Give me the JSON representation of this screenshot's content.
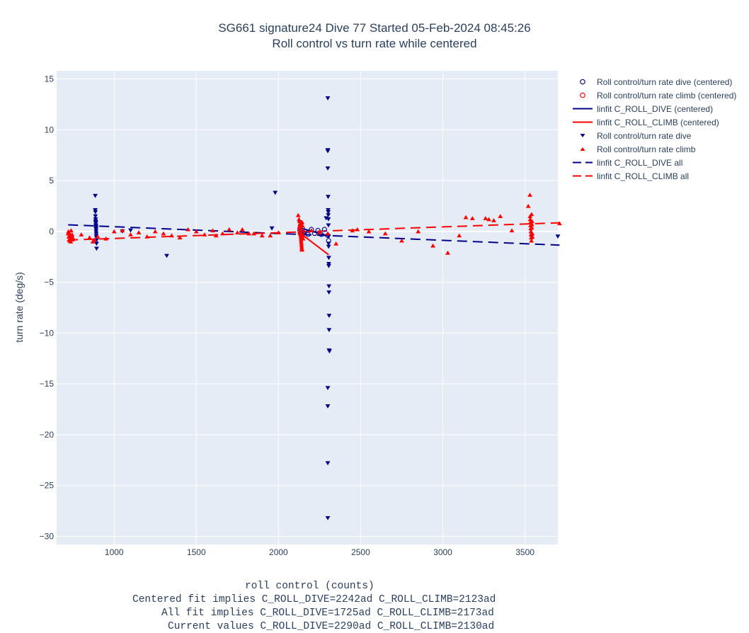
{
  "chart_data": {
    "type": "scatter",
    "title": "SG661 signature24 Dive 77 Started 05-Feb-2024 08:45:26",
    "subtitle": "Roll control vs turn rate while centered",
    "xlabel": "roll control (counts)",
    "xlabel_lines": [
      "Centered fit implies C_ROLL_DIVE=2242ad C_ROLL_CLIMB=2123ad",
      "All fit implies C_ROLL_DIVE=1725ad C_ROLL_CLIMB=2173ad",
      "Current values C_ROLL_DIVE=2290ad C_ROLL_CLIMB=2130ad"
    ],
    "ylabel": "turn rate (deg/s)",
    "xlim": [
      650,
      3700
    ],
    "ylim": [
      -30.8,
      15.8
    ],
    "xticks": [
      1000,
      1500,
      2000,
      2500,
      3000,
      3500
    ],
    "yticks": [
      15,
      10,
      5,
      0,
      -5,
      -10,
      -15,
      -20,
      -25,
      -30
    ],
    "grid": true,
    "legend_position": "right",
    "colors": {
      "dive": "#00008b",
      "climb": "#ff0000",
      "plot_bg": "#e5ecf6",
      "grid": "#ffffff",
      "text": "#2a3f5f"
    },
    "series": [
      {
        "name": "Roll control/turn rate dive (centered)",
        "kind": "open-circle",
        "color": "#00008b",
        "x": [
          2130,
          2135,
          2145,
          2150,
          2160,
          2180,
          2200,
          2220,
          2240,
          2260,
          2280,
          2300,
          2305
        ],
        "y": [
          0.1,
          -0.2,
          0.3,
          -0.1,
          0.0,
          -0.3,
          0.2,
          -0.2,
          0.1,
          -0.3,
          0.2,
          -0.4,
          -0.9
        ]
      },
      {
        "name": "Roll control/turn rate climb (centered)",
        "kind": "open-circle",
        "color": "#ff0000",
        "x": [
          2130,
          2132,
          2136,
          2140,
          2142,
          2146
        ],
        "y": [
          0.3,
          -0.2,
          0.5,
          -0.5,
          0.1,
          -0.1
        ]
      },
      {
        "name": "linfit C_ROLL_DIVE (centered)",
        "kind": "line",
        "color": "#00008b",
        "x": [
          2130,
          2305
        ],
        "y": [
          0.35,
          -0.45
        ]
      },
      {
        "name": "linfit C_ROLL_CLIMB (centered)",
        "kind": "line",
        "color": "#ff0000",
        "x": [
          2130,
          2305
        ],
        "y": [
          -0.15,
          -2.3
        ]
      },
      {
        "name": "Roll control/turn rate dive",
        "kind": "triangle-down",
        "color": "#00008b",
        "x": [
          885,
          885,
          886,
          886,
          887,
          887,
          888,
          888,
          889,
          889,
          890,
          890,
          891,
          891,
          892,
          892,
          893,
          893,
          888,
          890,
          1050,
          1100,
          1320,
          1960,
          1980,
          2130,
          2132,
          2134,
          2136,
          2138,
          2140,
          2290,
          2300,
          2300,
          2300,
          2300,
          2302,
          2302,
          2303,
          2303,
          2304,
          2304,
          2305,
          2305,
          2305,
          2306,
          2306,
          2306,
          2307,
          2307,
          2308,
          2308,
          2308,
          2310,
          3540,
          3700
        ],
        "y": [
          3.5,
          2.1,
          1.9,
          1.5,
          1.2,
          1.0,
          0.8,
          0.6,
          0.5,
          0.3,
          0.2,
          0.0,
          -0.2,
          -0.4,
          -0.6,
          -0.9,
          -1.2,
          -1.7,
          0.9,
          0.4,
          0.0,
          0.1,
          -2.4,
          0.3,
          3.8,
          0.9,
          0.5,
          0.2,
          -0.1,
          -0.3,
          -0.6,
          1.3,
          13.1,
          8.0,
          7.9,
          6.2,
          3.4,
          2.1,
          1.9,
          1.6,
          1.2,
          0.6,
          -0.5,
          -1.2,
          -1.5,
          -2.6,
          -3.2,
          -3.4,
          -5.4,
          -6.0,
          -8.3,
          -9.7,
          -11.7,
          -11.8,
          -0.5,
          -0.5
        ],
        "extra_points": {
          "x": [
            2300,
            2300,
            2300,
            2300
          ],
          "y": [
            -15.4,
            -17.2,
            -22.8,
            -28.2
          ]
        }
      },
      {
        "name": "Roll control/turn rate climb",
        "kind": "triangle-up",
        "color": "#ff0000",
        "x": [
          720,
          722,
          724,
          726,
          728,
          730,
          732,
          734,
          736,
          738,
          740,
          742,
          744,
          746,
          748,
          800,
          850,
          870,
          880,
          900,
          950,
          1000,
          1050,
          1100,
          1150,
          1200,
          1250,
          1300,
          1350,
          1400,
          1450,
          1500,
          1550,
          1600,
          1620,
          1660,
          1700,
          1750,
          1780,
          1820,
          1850,
          1900,
          1950,
          2000,
          2120,
          2125,
          2128,
          2130,
          2131,
          2132,
          2133,
          2134,
          2135,
          2136,
          2137,
          2138,
          2139,
          2140,
          2141,
          2142,
          2143,
          2144,
          2145,
          2147,
          2150,
          2200,
          2250,
          2300,
          2350,
          2450,
          2480,
          2550,
          2650,
          2750,
          2850,
          2940,
          3030,
          3100,
          3140,
          3180,
          3260,
          3280,
          3310,
          3350,
          3420,
          3520,
          3530,
          3531,
          3532,
          3533,
          3534,
          3535,
          3536,
          3537,
          3538,
          3539,
          3540,
          3541,
          3542,
          3543,
          3544,
          3545,
          3710
        ],
        "y": [
          -0.2,
          0.0,
          -0.5,
          -0.8,
          -0.4,
          -0.9,
          -0.3,
          -0.6,
          -1.0,
          0.1,
          -0.7,
          -0.5,
          -0.3,
          -0.8,
          -0.6,
          -0.3,
          -0.6,
          -1.0,
          -0.8,
          -0.5,
          -0.7,
          0.0,
          0.1,
          -0.3,
          -0.1,
          -0.5,
          0.0,
          -0.2,
          -0.4,
          -0.6,
          0.2,
          0.0,
          -0.3,
          0.1,
          -0.4,
          -0.2,
          0.2,
          -0.1,
          0.2,
          -0.2,
          -0.2,
          -0.4,
          -0.4,
          -0.1,
          1.6,
          1.2,
          1.0,
          0.7,
          0.5,
          0.3,
          0.1,
          -0.1,
          -0.3,
          -0.5,
          -0.7,
          -0.9,
          -1.1,
          -1.3,
          -1.5,
          -1.7,
          -1.8,
          0.9,
          0.6,
          -0.4,
          -0.7,
          0.1,
          -0.1,
          -0.2,
          -1.2,
          0.1,
          0.2,
          0.0,
          -0.2,
          -0.9,
          0.0,
          -1.4,
          -2.1,
          -0.4,
          1.4,
          1.3,
          1.3,
          1.2,
          1.1,
          1.5,
          0.1,
          2.5,
          3.6,
          1.5,
          1.2,
          0.9,
          0.6,
          0.3,
          0.0,
          -0.3,
          -0.6,
          -0.9,
          1.7,
          0.4,
          0.7,
          1.0,
          -0.2,
          -0.5,
          0.8
        ]
      },
      {
        "name": "linfit C_ROLL_DIVE all",
        "kind": "dash",
        "color": "#00008b",
        "x": [
          720,
          3710
        ],
        "y": [
          0.65,
          -1.35
        ]
      },
      {
        "name": "linfit C_ROLL_CLIMB all",
        "kind": "dash",
        "color": "#ff0000",
        "x": [
          720,
          3710
        ],
        "y": [
          -0.85,
          0.85
        ]
      }
    ]
  }
}
